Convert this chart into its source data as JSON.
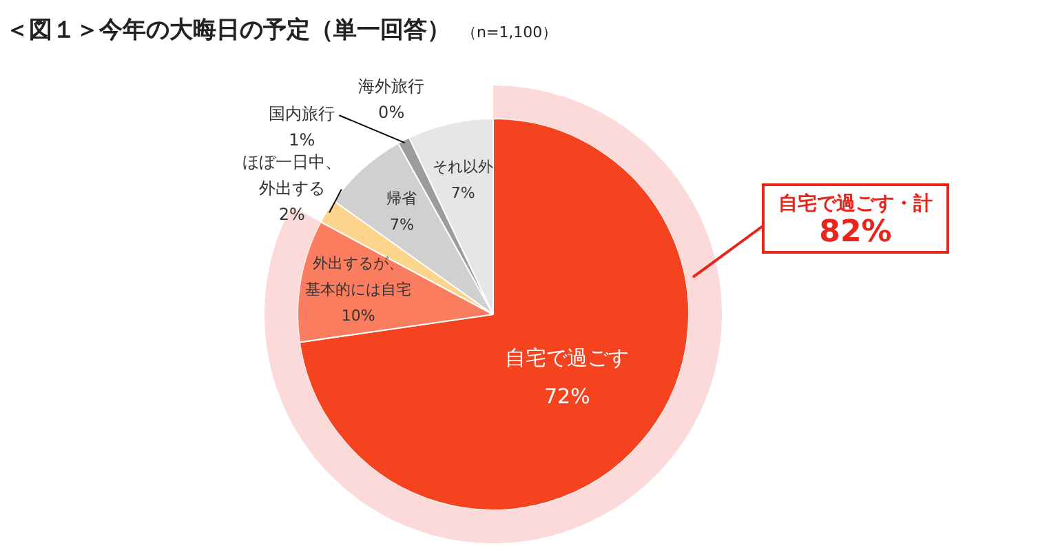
{
  "chart_data": {
    "type": "pie",
    "title": "＜図１＞今年の大晦日の予定（単一回答）",
    "subtitle": "（n=1,100）",
    "categories": [
      "自宅で過ごす",
      "外出するが、基本的には自宅",
      "ほぼ一日中、外出する",
      "帰省",
      "国内旅行",
      "海外旅行",
      "それ以外"
    ],
    "series": [
      {
        "values": [
          72,
          10,
          2,
          7,
          1,
          0,
          7
        ],
        "colors": [
          "#f54320",
          "#fa7d5f",
          "#fdd48c",
          "#d0d0d0",
          "#9c9c9c",
          "#d9d9d9",
          "#e6e6e6"
        ],
        "value_labels": [
          "72%",
          "10%",
          "2%",
          "7%",
          "1%",
          "0%",
          "7%"
        ]
      },
      {
        "name": "自宅で過ごす・計",
        "type": "donut",
        "color": "#fddada",
        "values": [
          82,
          null,
          null,
          null,
          null,
          null,
          null
        ],
        "value_labels": [
          "82%",
          null,
          null,
          null,
          null,
          null,
          null
        ]
      }
    ]
  }
}
